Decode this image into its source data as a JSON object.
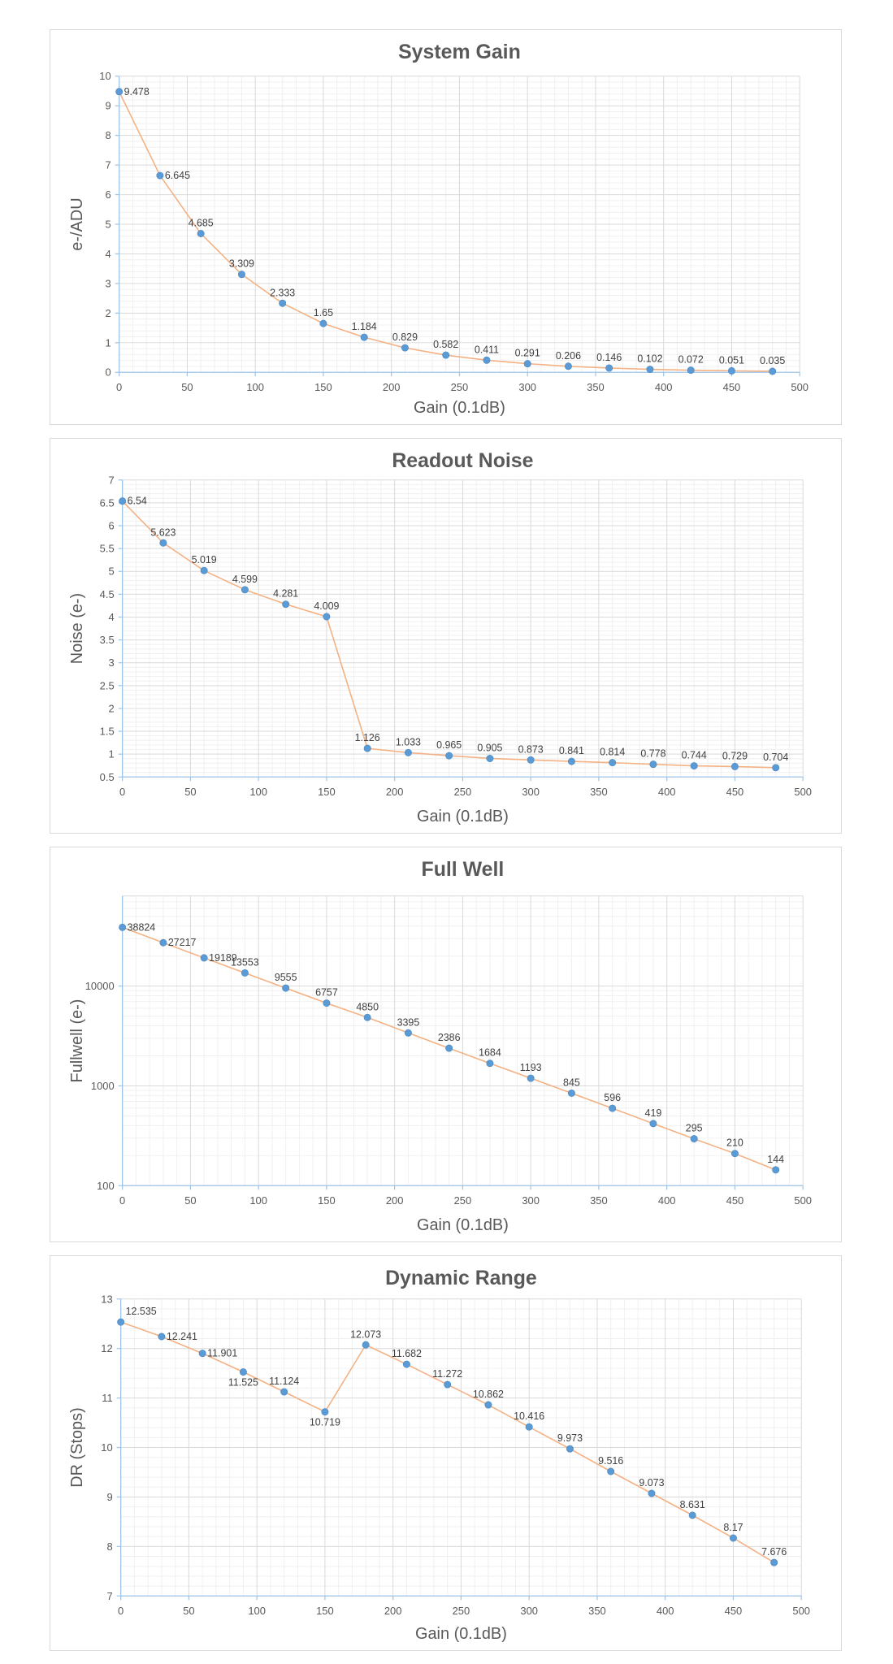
{
  "colors": {
    "line": "#f4b183",
    "marker": "#5b9bd5",
    "grid_major": "#d9d9d9",
    "grid_minor": "#f0f0f0",
    "axis": "#9dc3e6",
    "text": "#595959"
  },
  "chart_data": [
    {
      "type": "line",
      "title": "System Gain",
      "xlabel": "Gain (0.1dB)",
      "ylabel": "e-/ADU",
      "yscale": "linear",
      "xlim": [
        0,
        500
      ],
      "ylim": [
        0,
        10
      ],
      "xticks": [
        0,
        50,
        100,
        150,
        200,
        250,
        300,
        350,
        400,
        450,
        500
      ],
      "xtick_labels": [
        "0",
        "50",
        "100",
        "150",
        "200",
        "250",
        "300",
        "350",
        "400",
        "450",
        "500"
      ],
      "yticks": [
        0,
        1,
        2,
        3,
        4,
        5,
        6,
        7,
        8,
        9,
        10
      ],
      "ytick_labels": [
        "0",
        "1",
        "2",
        "3",
        "4",
        "5",
        "6",
        "7",
        "8",
        "9",
        "10"
      ],
      "minor_x_step": 10,
      "minor_y_step": 0.2,
      "x": [
        0,
        30,
        60,
        90,
        120,
        150,
        180,
        210,
        240,
        270,
        300,
        330,
        360,
        390,
        420,
        450,
        480
      ],
      "values": [
        9.478,
        6.645,
        4.685,
        3.309,
        2.333,
        1.65,
        1.184,
        0.829,
        0.582,
        0.411,
        0.291,
        0.206,
        0.146,
        0.102,
        0.072,
        0.051,
        0.035
      ],
      "labels": [
        "9.478",
        "6.645",
        "4.685",
        "3.309",
        "2.333",
        "1.65",
        "1.184",
        "0.829",
        "0.582",
        "0.411",
        "0.291",
        "0.206",
        "0.146",
        "0.102",
        "0.072",
        "0.051",
        "0.035"
      ],
      "label_positions": [
        "right",
        "right",
        "above",
        "above",
        "above",
        "above",
        "above",
        "above",
        "above",
        "above",
        "above",
        "above",
        "above",
        "above",
        "above",
        "above",
        "above"
      ]
    },
    {
      "type": "line",
      "title": "Readout Noise",
      "xlabel": "Gain (0.1dB)",
      "ylabel": "Noise (e-)",
      "yscale": "linear",
      "xlim": [
        0,
        500
      ],
      "ylim": [
        0.5,
        7
      ],
      "xticks": [
        0,
        50,
        100,
        150,
        200,
        250,
        300,
        350,
        400,
        450,
        500
      ],
      "xtick_labels": [
        "0",
        "50",
        "100",
        "150",
        "200",
        "250",
        "300",
        "350",
        "400",
        "450",
        "500"
      ],
      "yticks": [
        0.5,
        1,
        1.5,
        2,
        2.5,
        3,
        3.5,
        4,
        4.5,
        5,
        5.5,
        6,
        6.5,
        7
      ],
      "ytick_labels": [
        "0.5",
        "1",
        "1.5",
        "2",
        "2.5",
        "3",
        "3.5",
        "4",
        "4.5",
        "5",
        "5.5",
        "6",
        "6.5",
        "7"
      ],
      "minor_x_step": 10,
      "minor_y_step": 0.1,
      "x": [
        0,
        30,
        60,
        90,
        120,
        150,
        180,
        210,
        240,
        270,
        300,
        330,
        360,
        390,
        420,
        450,
        480
      ],
      "values": [
        6.54,
        5.623,
        5.019,
        4.599,
        4.281,
        4.009,
        1.126,
        1.033,
        0.965,
        0.905,
        0.873,
        0.841,
        0.814,
        0.778,
        0.744,
        0.729,
        0.704
      ],
      "labels": [
        "6.54",
        "5.623",
        "5.019",
        "4.599",
        "4.281",
        "4.009",
        "1.126",
        "1.033",
        "0.965",
        "0.905",
        "0.873",
        "0.841",
        "0.814",
        "0.778",
        "0.744",
        "0.729",
        "0.704"
      ],
      "label_positions": [
        "right",
        "above",
        "above",
        "above",
        "above",
        "above",
        "above",
        "above",
        "above",
        "above",
        "above",
        "above",
        "above",
        "above",
        "above",
        "above",
        "above"
      ]
    },
    {
      "type": "line",
      "title": "Full Well",
      "xlabel": "Gain (0.1dB)",
      "ylabel": "Fullwell (e-)",
      "yscale": "log",
      "xlim": [
        0,
        500
      ],
      "ylim": [
        100,
        80000
      ],
      "xticks": [
        0,
        50,
        100,
        150,
        200,
        250,
        300,
        350,
        400,
        450,
        500
      ],
      "xtick_labels": [
        "0",
        "50",
        "100",
        "150",
        "200",
        "250",
        "300",
        "350",
        "400",
        "450",
        "500"
      ],
      "yticks": [
        100,
        1000,
        10000
      ],
      "ytick_labels": [
        "100",
        "1000",
        "10000"
      ],
      "minor_x_step": 10,
      "x": [
        0,
        30,
        60,
        90,
        120,
        150,
        180,
        210,
        240,
        270,
        300,
        330,
        360,
        390,
        420,
        450,
        480
      ],
      "values": [
        38824,
        27217,
        19189,
        13553,
        9555,
        6757,
        4850,
        3395,
        2386,
        1684,
        1193,
        845,
        596,
        419,
        295,
        210,
        144
      ],
      "labels": [
        "38824",
        "27217",
        "19189",
        "13553",
        "9555",
        "6757",
        "4850",
        "3395",
        "2386",
        "1684",
        "1193",
        "845",
        "596",
        "419",
        "295",
        "210",
        "144"
      ],
      "label_positions": [
        "right",
        "right",
        "right",
        "above",
        "above",
        "above",
        "above",
        "above",
        "above",
        "above",
        "above",
        "above",
        "above",
        "above",
        "above",
        "above",
        "above"
      ]
    },
    {
      "type": "line",
      "title": "Dynamic Range",
      "xlabel": "Gain (0.1dB)",
      "ylabel": "DR (Stops)",
      "yscale": "linear",
      "xlim": [
        0,
        500
      ],
      "ylim": [
        7,
        13
      ],
      "xticks": [
        0,
        50,
        100,
        150,
        200,
        250,
        300,
        350,
        400,
        450,
        500
      ],
      "xtick_labels": [
        "0",
        "50",
        "100",
        "150",
        "200",
        "250",
        "300",
        "350",
        "400",
        "450",
        "500"
      ],
      "yticks": [
        7,
        8,
        9,
        10,
        11,
        12,
        13
      ],
      "ytick_labels": [
        "7",
        "8",
        "9",
        "10",
        "11",
        "12",
        "13"
      ],
      "minor_x_step": 10,
      "minor_y_step": 0.2,
      "x": [
        0,
        30,
        60,
        90,
        120,
        150,
        180,
        210,
        240,
        270,
        300,
        330,
        360,
        390,
        420,
        450,
        480
      ],
      "values": [
        12.535,
        12.241,
        11.901,
        11.525,
        11.124,
        10.719,
        12.073,
        11.682,
        11.272,
        10.862,
        10.416,
        9.973,
        9.516,
        9.073,
        8.631,
        8.17,
        7.676
      ],
      "labels": [
        "12.535",
        "12.241",
        "11.901",
        "11.525",
        "11.124",
        "10.719",
        "12.073",
        "11.682",
        "11.272",
        "10.862",
        "10.416",
        "9.973",
        "9.516",
        "9.073",
        "8.631",
        "8.17",
        "7.676"
      ],
      "label_positions": [
        "above-right",
        "right",
        "right",
        "below",
        "above",
        "below",
        "above",
        "above",
        "above",
        "above",
        "above",
        "above",
        "above",
        "above",
        "above",
        "above",
        "above"
      ]
    }
  ]
}
